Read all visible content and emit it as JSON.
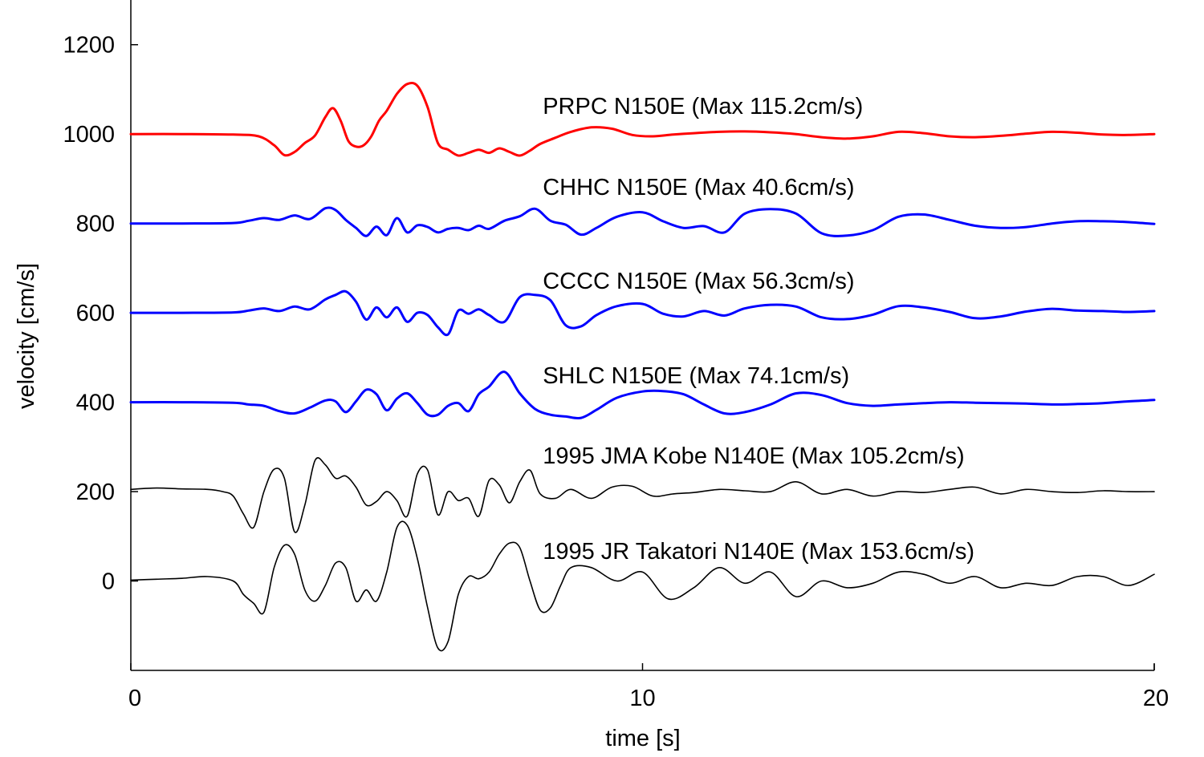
{
  "chart_data": {
    "type": "line",
    "title": "",
    "xlabel": "time [s]",
    "ylabel": "velocity [cm/s]",
    "xlim": [
      0,
      20
    ],
    "ylim": [
      -200,
      1300
    ],
    "xticks": [
      0,
      10,
      20
    ],
    "yticks": [
      0,
      200,
      400,
      600,
      800,
      1000,
      1200
    ],
    "grid": false,
    "series": [
      {
        "name": "PRPC N150E (Max 115.2cm/s)",
        "color": "#ff0000",
        "x": [
          0,
          1,
          2,
          2.5,
          2.8,
          3.0,
          3.2,
          3.4,
          3.6,
          3.8,
          3.95,
          4.1,
          4.25,
          4.4,
          4.55,
          4.7,
          4.85,
          5.0,
          5.2,
          5.4,
          5.6,
          5.8,
          6.0,
          6.2,
          6.4,
          6.6,
          6.8,
          7.0,
          7.2,
          7.4,
          7.6,
          7.8,
          8.0,
          8.3,
          8.6,
          9.0,
          9.4,
          9.8,
          10.2,
          10.6,
          11.0,
          11.5,
          12.0,
          12.5,
          13.0,
          13.5,
          14.0,
          14.5,
          15.0,
          15.5,
          16.0,
          16.5,
          17.0,
          17.5,
          18.0,
          18.5,
          19.0,
          19.5,
          20.0
        ],
        "y": [
          1000,
          1000,
          999,
          995,
          975,
          953,
          960,
          980,
          997,
          1038,
          1058,
          1030,
          985,
          972,
          975,
          995,
          1030,
          1052,
          1090,
          1112,
          1108,
          1060,
          980,
          965,
          952,
          958,
          965,
          958,
          968,
          960,
          952,
          963,
          978,
          992,
          1005,
          1015,
          1012,
          998,
          995,
          999,
          1002,
          1005,
          1006,
          1004,
          1000,
          993,
          990,
          995,
          1005,
          1002,
          995,
          993,
          996,
          1001,
          1005,
          1003,
          999,
          998,
          1000
        ]
      },
      {
        "name": "CHHC N150E (Max 40.6cm/s)",
        "color": "#0000ff",
        "x": [
          0,
          1,
          2,
          2.3,
          2.6,
          2.9,
          3.2,
          3.5,
          3.8,
          4.0,
          4.2,
          4.4,
          4.6,
          4.8,
          5.0,
          5.2,
          5.4,
          5.6,
          5.8,
          6.0,
          6.2,
          6.4,
          6.6,
          6.8,
          7.0,
          7.3,
          7.6,
          7.9,
          8.2,
          8.5,
          8.8,
          9.1,
          9.5,
          10.0,
          10.4,
          10.8,
          11.2,
          11.6,
          12.0,
          12.5,
          13.0,
          13.5,
          14.0,
          14.5,
          15.0,
          15.5,
          16.0,
          16.5,
          17.0,
          17.5,
          18.0,
          18.5,
          19.0,
          19.5,
          20.0
        ],
        "y": [
          800,
          800,
          801,
          806,
          812,
          808,
          818,
          810,
          834,
          830,
          808,
          790,
          772,
          793,
          774,
          812,
          780,
          796,
          792,
          780,
          788,
          790,
          785,
          795,
          788,
          806,
          816,
          833,
          806,
          797,
          775,
          790,
          815,
          825,
          805,
          790,
          794,
          780,
          822,
          832,
          822,
          778,
          773,
          785,
          815,
          820,
          808,
          795,
          790,
          792,
          800,
          805,
          805,
          803,
          799
        ]
      },
      {
        "name": "CCCC N150E (Max 56.3cm/s)",
        "color": "#0000ff",
        "x": [
          0,
          1,
          2,
          2.3,
          2.6,
          2.9,
          3.2,
          3.5,
          3.8,
          4.0,
          4.2,
          4.4,
          4.6,
          4.8,
          5.0,
          5.2,
          5.4,
          5.6,
          5.8,
          6.0,
          6.2,
          6.4,
          6.6,
          6.8,
          7.0,
          7.3,
          7.6,
          7.9,
          8.2,
          8.5,
          8.8,
          9.1,
          9.5,
          10.0,
          10.4,
          10.8,
          11.2,
          11.6,
          12.0,
          12.5,
          13.0,
          13.5,
          14.0,
          14.5,
          15.0,
          15.5,
          16.0,
          16.5,
          17.0,
          17.5,
          18.0,
          18.5,
          19.0,
          19.5,
          20.0
        ],
        "y": [
          600,
          600,
          601,
          605,
          610,
          604,
          614,
          608,
          630,
          640,
          648,
          625,
          585,
          612,
          590,
          612,
          580,
          600,
          595,
          568,
          552,
          605,
          598,
          608,
          595,
          580,
          635,
          640,
          628,
          572,
          570,
          595,
          615,
          620,
          598,
          592,
          604,
          594,
          610,
          618,
          614,
          590,
          586,
          596,
          615,
          612,
          602,
          588,
          592,
          603,
          609,
          605,
          604,
          602,
          604
        ]
      },
      {
        "name": "SHLC N150E (Max 74.1cm/s)",
        "color": "#0000ff",
        "x": [
          0,
          1,
          2,
          2.3,
          2.6,
          2.9,
          3.2,
          3.5,
          3.8,
          4.0,
          4.2,
          4.4,
          4.6,
          4.8,
          5.0,
          5.2,
          5.4,
          5.6,
          5.8,
          6.0,
          6.2,
          6.4,
          6.6,
          6.8,
          7.0,
          7.3,
          7.6,
          7.9,
          8.2,
          8.5,
          8.8,
          9.1,
          9.5,
          10.0,
          10.4,
          10.8,
          11.2,
          11.6,
          12.0,
          12.5,
          13.0,
          13.5,
          14.0,
          14.5,
          15.0,
          15.5,
          16.0,
          16.5,
          17.0,
          17.5,
          18.0,
          18.5,
          19.0,
          19.5,
          20.0
        ],
        "y": [
          400,
          400,
          399,
          395,
          392,
          380,
          375,
          388,
          404,
          402,
          378,
          402,
          428,
          418,
          382,
          408,
          420,
          398,
          372,
          372,
          392,
          398,
          380,
          418,
          435,
          468,
          420,
          385,
          372,
          368,
          365,
          383,
          410,
          424,
          425,
          418,
          395,
          375,
          378,
          395,
          420,
          416,
          398,
          392,
          395,
          398,
          400,
          399,
          398,
          397,
          395,
          396,
          398,
          402,
          405
        ]
      },
      {
        "name": "1995 JMA Kobe N140E (Max 105.2cm/s)",
        "color": "#000000",
        "x": [
          0,
          0.5,
          1,
          1.5,
          1.8,
          2.0,
          2.2,
          2.4,
          2.6,
          2.8,
          3.0,
          3.2,
          3.4,
          3.6,
          3.8,
          4.0,
          4.2,
          4.4,
          4.6,
          4.8,
          5.0,
          5.2,
          5.4,
          5.6,
          5.8,
          6.0,
          6.2,
          6.4,
          6.6,
          6.8,
          7.0,
          7.2,
          7.4,
          7.6,
          7.8,
          8.0,
          8.3,
          8.6,
          9.0,
          9.4,
          9.8,
          10.2,
          10.6,
          11.0,
          11.5,
          12.0,
          12.5,
          13.0,
          13.5,
          14.0,
          14.5,
          15.0,
          15.5,
          16.0,
          16.5,
          17.0,
          17.5,
          18.0,
          18.5,
          19.0,
          19.5,
          20.0
        ],
        "y": [
          205,
          208,
          206,
          205,
          200,
          190,
          150,
          120,
          200,
          250,
          230,
          110,
          170,
          270,
          260,
          230,
          235,
          210,
          170,
          178,
          200,
          180,
          145,
          240,
          248,
          148,
          200,
          180,
          185,
          145,
          225,
          215,
          175,
          222,
          248,
          195,
          185,
          205,
          185,
          210,
          212,
          190,
          195,
          198,
          205,
          202,
          200,
          222,
          195,
          205,
          190,
          200,
          198,
          205,
          210,
          195,
          205,
          200,
          198,
          202,
          200,
          200
        ]
      },
      {
        "name": "1995 JR Takatori N140E (Max 153.6cm/s)",
        "color": "#000000",
        "x": [
          0,
          0.5,
          1,
          1.5,
          2.0,
          2.2,
          2.4,
          2.6,
          2.8,
          3.0,
          3.2,
          3.4,
          3.6,
          3.8,
          4.0,
          4.2,
          4.4,
          4.6,
          4.8,
          5.0,
          5.2,
          5.4,
          5.6,
          5.8,
          6.0,
          6.2,
          6.4,
          6.6,
          6.8,
          7.0,
          7.2,
          7.4,
          7.6,
          7.8,
          8.0,
          8.2,
          8.4,
          8.6,
          9.0,
          9.5,
          10.0,
          10.5,
          11.0,
          11.5,
          12.0,
          12.5,
          13.0,
          13.5,
          14.0,
          14.5,
          15.0,
          15.5,
          16.0,
          16.5,
          17.0,
          17.5,
          18.0,
          18.5,
          19.0,
          19.5,
          20.0
        ],
        "y": [
          2,
          4,
          6,
          10,
          0,
          -30,
          -50,
          -70,
          30,
          80,
          60,
          -20,
          -45,
          -10,
          40,
          30,
          -45,
          -20,
          -45,
          20,
          120,
          125,
          50,
          -60,
          -150,
          -135,
          -30,
          10,
          5,
          20,
          60,
          85,
          75,
          0,
          -65,
          -60,
          -10,
          30,
          30,
          0,
          20,
          -40,
          -15,
          30,
          -5,
          20,
          -35,
          0,
          -15,
          -5,
          20,
          15,
          -5,
          10,
          -15,
          -5,
          -10,
          10,
          10,
          -10,
          15
        ]
      }
    ]
  }
}
